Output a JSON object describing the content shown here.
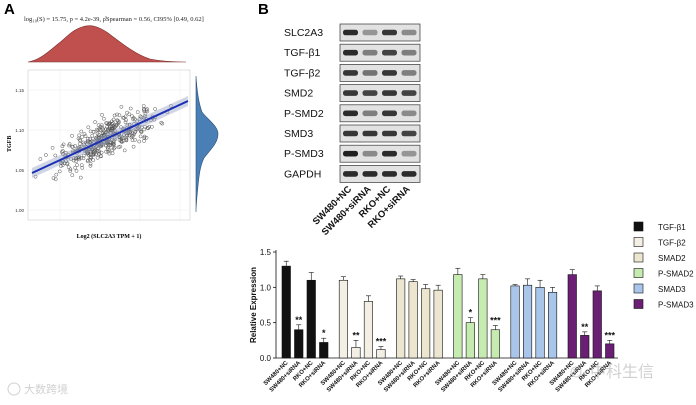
{
  "panel_a": {
    "label": "A",
    "stats": "log₁₀(S) = 15.75, p = 4.2e-39, ρ̂Spearman = 0.56, CI95% [0.49, 0.62]",
    "ylabel": "TGFB",
    "xlabel": "Log2 (SLC2A3 TPM + 1)",
    "yticks": [
      "1.15",
      "1.10",
      "1.05",
      "1.00"
    ],
    "colors": {
      "points": "#555555",
      "line": "#1a2fb5",
      "density_top": "#c0504d",
      "density_right": "#4a7fb5"
    }
  },
  "panel_b": {
    "label": "B",
    "blot_labels": [
      "SLC2A3",
      "TGF-β1",
      "TGF-β2",
      "SMD2",
      "P-SMD2",
      "SMD3",
      "P-SMD3",
      "GAPDH"
    ],
    "lane_labels": [
      "SW480+NC",
      "SW480+siRNA",
      "RKO+NC",
      "RKO+siRNA"
    ]
  },
  "chart_data": {
    "type": "bar",
    "ylabel": "Relative Expression",
    "ylim": [
      0,
      1.5
    ],
    "yticks": [
      "0.0",
      "0.5",
      "1.0",
      "1.5"
    ],
    "categories": [
      "SW480+NC",
      "SW480+siRNA",
      "RKO+NC",
      "RKO+siRNA"
    ],
    "series": [
      {
        "name": "TGF-β1",
        "color": "#111111",
        "values": [
          1.3,
          0.4,
          1.1,
          0.22
        ],
        "errors": [
          0.07,
          0.07,
          0.11,
          0.06
        ],
        "sig": [
          "",
          "**",
          "",
          "*"
        ]
      },
      {
        "name": "TGF-β2",
        "color": "#f3efe4",
        "values": [
          1.1,
          0.15,
          0.8,
          0.12
        ],
        "errors": [
          0.05,
          0.1,
          0.08,
          0.04
        ],
        "sig": [
          "",
          "**",
          "",
          "***"
        ]
      },
      {
        "name": "SMAD2",
        "color": "#ece5cf",
        "values": [
          1.12,
          1.08,
          0.98,
          0.96
        ],
        "errors": [
          0.04,
          0.03,
          0.06,
          0.07
        ],
        "sig": [
          "",
          "",
          "",
          ""
        ]
      },
      {
        "name": "P-SMAD2",
        "color": "#c6ebb0",
        "values": [
          1.18,
          0.5,
          1.12,
          0.4
        ],
        "errors": [
          0.09,
          0.07,
          0.06,
          0.06
        ],
        "sig": [
          "",
          "*",
          "",
          "***"
        ]
      },
      {
        "name": "SMAD3",
        "color": "#a9c6ea",
        "values": [
          1.02,
          1.03,
          1.0,
          0.93
        ],
        "errors": [
          0.02,
          0.09,
          0.1,
          0.07
        ],
        "sig": [
          "",
          "",
          "",
          ""
        ]
      },
      {
        "name": "P-SMAD3",
        "color": "#6a1f74",
        "values": [
          1.18,
          0.32,
          0.95,
          0.2
        ],
        "errors": [
          0.07,
          0.05,
          0.07,
          0.05
        ],
        "sig": [
          "",
          "**",
          "",
          "***"
        ]
      }
    ]
  },
  "watermarks": [
    "大数跨境",
    "中科生信"
  ]
}
